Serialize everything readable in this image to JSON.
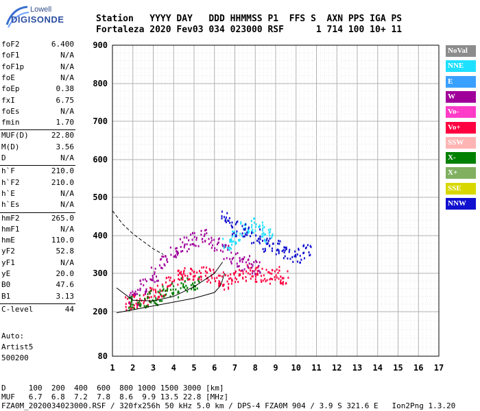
{
  "logo": {
    "line1": "Lowell",
    "line2": "DIGISONDE"
  },
  "header": {
    "labels": "Station   YYYY DAY   DDD HHMMSS P1  FFS S  AXN PPS IGA PS",
    "values": "Fortaleza 2020 Fev03 034 023000 RSF      1 714 100 10+ 11"
  },
  "params": [
    {
      "k": "foF2",
      "v": "6.400"
    },
    {
      "k": "foF1",
      "v": "N/A"
    },
    {
      "k": "foF1p",
      "v": "N/A"
    },
    {
      "k": "foE",
      "v": "N/A"
    },
    {
      "k": "foEp",
      "v": "0.38"
    },
    {
      "k": "fxI",
      "v": "6.75"
    },
    {
      "k": "foEs",
      "v": "N/A"
    },
    {
      "k": "fmin",
      "v": "1.70"
    },
    {
      "k": "MUF(D)",
      "v": "22.80"
    },
    {
      "k": "M(D)",
      "v": "3.56"
    },
    {
      "k": "D",
      "v": "N/A"
    },
    {
      "k": "h`F",
      "v": "210.0"
    },
    {
      "k": "h`F2",
      "v": "210.0"
    },
    {
      "k": "h`E",
      "v": "N/A"
    },
    {
      "k": "h`Es",
      "v": "N/A"
    },
    {
      "k": "hmF2",
      "v": "265.0"
    },
    {
      "k": "hmF1",
      "v": "N/A"
    },
    {
      "k": "hmE",
      "v": "110.0"
    },
    {
      "k": "yF2",
      "v": "52.8"
    },
    {
      "k": "yF1",
      "v": "N/A"
    },
    {
      "k": "yE",
      "v": "20.0"
    },
    {
      "k": "B0",
      "v": "47.6"
    },
    {
      "k": "B1",
      "v": "3.13"
    },
    {
      "k": "C-level",
      "v": "44"
    }
  ],
  "auto": {
    "line1": "Auto:",
    "line2": "Artist5",
    "line3": "500200"
  },
  "legend": [
    {
      "label": "NoVal",
      "color": "#8c8c8c"
    },
    {
      "label": "NNE",
      "color": "#1ee0ff"
    },
    {
      "label": "E",
      "color": "#3aa0ff"
    },
    {
      "label": "W",
      "color": "#a0009a"
    },
    {
      "label": "Vo-",
      "color": "#ff3cc8"
    },
    {
      "label": "Vo+",
      "color": "#ff0040"
    },
    {
      "label": "SSW",
      "color": "#ffb4b4"
    },
    {
      "label": "X-",
      "color": "#008000"
    },
    {
      "label": "X+",
      "color": "#80b060"
    },
    {
      "label": "SSE",
      "color": "#d8d800"
    },
    {
      "label": "NNW",
      "color": "#1010d0"
    }
  ],
  "bottom": {
    "line1": "D     100  200  400  600  800 1000 1500 3000 [km]",
    "line2": "MUF   6.7  6.8  7.2  7.8  8.6  9.9 13.5 22.8 [MHz]",
    "line3": "FZA0M_2020034023000.RSF / 320fx256h 50 kHz 5.0 km / DPS-4 FZA0M 904 / 3.9 S 321.6 E   Ion2Png 1.3.20"
  },
  "chart_data": {
    "type": "scatter",
    "title": "",
    "xlabel": "",
    "ylabel": "",
    "xlim": [
      1,
      17
    ],
    "ylim": [
      80,
      900
    ],
    "x_ticks": [
      1,
      2,
      3,
      4,
      5,
      6,
      7,
      8,
      9,
      10,
      11,
      12,
      13,
      14,
      15,
      16,
      17
    ],
    "y_ticks": [
      80,
      200,
      300,
      400,
      500,
      600,
      700,
      800,
      900
    ],
    "grid": true,
    "legend_position": "right",
    "series": [
      {
        "name": "Vo+",
        "points": [
          [
            1.8,
            225
          ],
          [
            2.2,
            230
          ],
          [
            2.6,
            235
          ],
          [
            3.0,
            245
          ],
          [
            3.4,
            260
          ],
          [
            3.8,
            275
          ],
          [
            4.2,
            290
          ],
          [
            4.6,
            300
          ],
          [
            5.0,
            305
          ],
          [
            5.4,
            300
          ],
          [
            5.8,
            295
          ],
          [
            6.2,
            290
          ],
          [
            6.6,
            280
          ],
          [
            7.0,
            290
          ],
          [
            7.4,
            300
          ],
          [
            7.8,
            305
          ],
          [
            8.2,
            300
          ],
          [
            8.6,
            295
          ],
          [
            9.0,
            300
          ],
          [
            9.4,
            290
          ]
        ]
      },
      {
        "name": "W",
        "points": [
          [
            2.0,
            240
          ],
          [
            2.5,
            270
          ],
          [
            3.0,
            300
          ],
          [
            3.5,
            330
          ],
          [
            4.0,
            360
          ],
          [
            4.5,
            380
          ],
          [
            5.0,
            390
          ],
          [
            5.5,
            400
          ],
          [
            6.0,
            380
          ],
          [
            6.5,
            360
          ],
          [
            7.0,
            340
          ],
          [
            7.5,
            330
          ],
          [
            8.0,
            320
          ]
        ]
      },
      {
        "name": "NNE",
        "points": [
          [
            6.6,
            380
          ],
          [
            7.0,
            400
          ],
          [
            7.4,
            420
          ],
          [
            7.8,
            430
          ],
          [
            8.2,
            420
          ],
          [
            8.6,
            400
          ]
        ]
      },
      {
        "name": "X-",
        "points": [
          [
            2.0,
            225
          ],
          [
            2.5,
            230
          ],
          [
            3.0,
            240
          ],
          [
            3.5,
            250
          ],
          [
            4.0,
            260
          ],
          [
            4.5,
            270
          ],
          [
            5.0,
            275
          ]
        ]
      },
      {
        "name": "NNW",
        "points": [
          [
            6.5,
            450
          ],
          [
            7.0,
            420
          ],
          [
            7.5,
            420
          ],
          [
            8.0,
            400
          ],
          [
            8.5,
            380
          ],
          [
            9.0,
            370
          ],
          [
            9.5,
            360
          ],
          [
            10.0,
            350
          ],
          [
            10.5,
            360
          ]
        ]
      }
    ],
    "lines": [
      {
        "name": "",
        "points": [
          [
            1.2,
            197
          ],
          [
            2.0,
            205
          ],
          [
            3.0,
            215
          ],
          [
            4.0,
            225
          ],
          [
            5.0,
            235
          ],
          [
            6.0,
            250
          ],
          [
            6.3,
            268
          ],
          [
            6.5,
            300
          ]
        ]
      },
      {
        "name": "",
        "points": [
          [
            1.2,
            262
          ],
          [
            2.0,
            230
          ],
          [
            3.0,
            228
          ],
          [
            4.0,
            240
          ],
          [
            5.0,
            265
          ],
          [
            6.0,
            300
          ],
          [
            6.4,
            330
          ]
        ]
      },
      {
        "name": "",
        "style": "dashed",
        "points": [
          [
            1.0,
            465
          ],
          [
            1.5,
            430
          ],
          [
            2.0,
            405
          ],
          [
            2.5,
            385
          ],
          [
            3.0,
            365
          ],
          [
            3.5,
            350
          ]
        ]
      }
    ]
  }
}
